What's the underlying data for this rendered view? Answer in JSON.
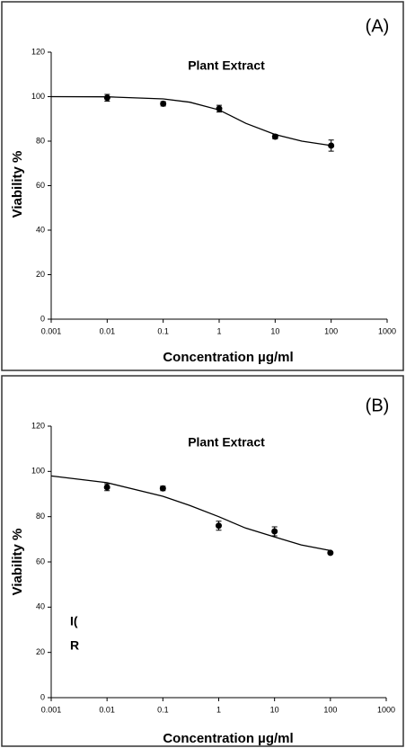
{
  "chart_data": [
    {
      "type": "scatter",
      "panel_label": "(A)",
      "title": "Plant Extract",
      "x_label": "Concentration µg/ml",
      "y_label": "Viability %",
      "x": [
        0.01,
        0.1,
        1,
        10,
        100
      ],
      "values": [
        99.5,
        96.8,
        94.6,
        82,
        78
      ],
      "errors": [
        1.5,
        1,
        1.5,
        1,
        2.5
      ],
      "color": "#000000",
      "curve": {
        "x": [
          0.001,
          0.01,
          0.1,
          0.3,
          1,
          3,
          10,
          30,
          100
        ],
        "values": [
          100,
          99.9,
          99,
          97.5,
          94,
          88,
          83,
          80,
          78
        ]
      },
      "xlim": [
        0.001,
        1000
      ],
      "xticks": [
        0.001,
        0.01,
        0.1,
        1,
        10,
        100,
        1000
      ],
      "log_x": true,
      "ylim": [
        0,
        120
      ],
      "yticks": [
        0,
        20,
        40,
        60,
        80,
        100,
        120
      ],
      "grid": false,
      "annotations": []
    },
    {
      "type": "scatter",
      "panel_label": "(B)",
      "title": "Plant Extract",
      "x_label": "Concentration µg/ml",
      "y_label": "Viability %",
      "x": [
        0.01,
        0.1,
        1,
        10,
        100
      ],
      "values": [
        93,
        92.5,
        76,
        73.5,
        64
      ],
      "errors": [
        1.5,
        1,
        2,
        2,
        0.5
      ],
      "color": "#000000",
      "curve": {
        "x": [
          0.001,
          0.01,
          0.1,
          0.3,
          1,
          3,
          10,
          30,
          100
        ],
        "values": [
          98,
          95,
          89,
          85,
          80,
          75,
          71,
          67.5,
          65
        ]
      },
      "xlim": [
        0.001,
        1000
      ],
      "xticks": [
        0.001,
        0.01,
        0.1,
        1,
        10,
        100,
        1000
      ],
      "log_x": true,
      "ylim": [
        0,
        120
      ],
      "yticks": [
        0,
        20,
        40,
        60,
        80,
        100,
        120
      ],
      "grid": false,
      "annotations": [
        "I(",
        "R"
      ]
    }
  ]
}
